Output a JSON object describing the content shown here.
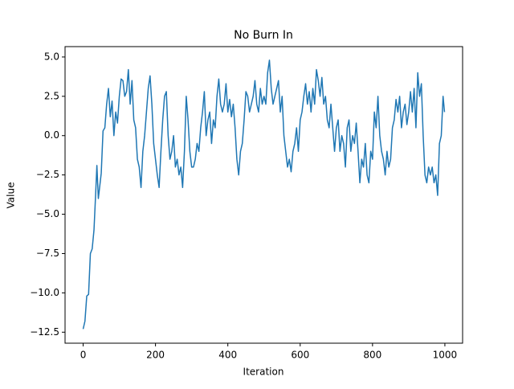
{
  "chart_data": {
    "type": "line",
    "title": "No Burn In",
    "x_label": "Iteration",
    "y_label": "Value",
    "color": "#1f77b4",
    "grid": false,
    "x": [
      0,
      5,
      10,
      15,
      20,
      25,
      30,
      35,
      38,
      42,
      50,
      55,
      60,
      65,
      70,
      75,
      80,
      85,
      90,
      95,
      100,
      105,
      110,
      115,
      120,
      125,
      130,
      135,
      140,
      145,
      150,
      155,
      160,
      165,
      170,
      175,
      180,
      185,
      190,
      195,
      200,
      205,
      210,
      215,
      220,
      225,
      230,
      235,
      240,
      245,
      250,
      255,
      260,
      265,
      270,
      275,
      280,
      285,
      290,
      295,
      300,
      305,
      310,
      315,
      320,
      325,
      330,
      335,
      340,
      345,
      350,
      355,
      360,
      365,
      370,
      375,
      380,
      385,
      390,
      395,
      400,
      405,
      410,
      415,
      420,
      425,
      430,
      435,
      440,
      445,
      450,
      455,
      460,
      465,
      470,
      475,
      480,
      485,
      490,
      495,
      500,
      505,
      510,
      515,
      520,
      525,
      530,
      535,
      540,
      545,
      550,
      555,
      560,
      565,
      570,
      575,
      580,
      585,
      590,
      595,
      600,
      605,
      610,
      615,
      620,
      625,
      630,
      635,
      640,
      645,
      650,
      655,
      660,
      665,
      670,
      675,
      680,
      685,
      690,
      695,
      700,
      705,
      710,
      715,
      720,
      725,
      730,
      735,
      740,
      745,
      750,
      755,
      760,
      765,
      770,
      775,
      780,
      785,
      790,
      795,
      800,
      805,
      810,
      815,
      820,
      825,
      830,
      835,
      840,
      845,
      850,
      855,
      860,
      865,
      870,
      875,
      880,
      885,
      890,
      895,
      900,
      905,
      910,
      915,
      920,
      925,
      930,
      935,
      940,
      945,
      950,
      955,
      960,
      965,
      970,
      975,
      980,
      985,
      990,
      995,
      999
    ],
    "values": [
      -12.3,
      -11.8,
      -10.2,
      -10.1,
      -7.5,
      -7.2,
      -6,
      -3.5,
      -1.9,
      -4,
      -2.4,
      0.3,
      0.5,
      2,
      3,
      1.2,
      2.2,
      0,
      1.5,
      0.8,
      2.5,
      3.6,
      3.5,
      2.5,
      2.8,
      4.2,
      2,
      3.5,
      1,
      0.5,
      -1.5,
      -2,
      -3.3,
      -1,
      0,
      1.5,
      3,
      3.8,
      2,
      -0.5,
      -1.5,
      -2.5,
      -3.3,
      -1,
      1,
      2.5,
      2.8,
      0,
      -1.5,
      -1,
      0,
      -2,
      -1.5,
      -2.5,
      -2,
      -3.3,
      -1,
      2.5,
      1,
      -1,
      -2,
      -2,
      -1.5,
      -0.5,
      -1,
      0.5,
      1.5,
      2.8,
      0,
      1,
      1.5,
      -0.5,
      1,
      0.5,
      2.5,
      3.6,
      2,
      1.5,
      2,
      3.3,
      1.5,
      2.3,
      1.2,
      2,
      0.5,
      -1.5,
      -2.5,
      -1,
      -0.5,
      1,
      2.8,
      2.5,
      1.5,
      2,
      2.5,
      3.5,
      2,
      1.5,
      3,
      2,
      2.5,
      2,
      4,
      4.8,
      3,
      2,
      2.5,
      3,
      3.5,
      1.5,
      2.5,
      0,
      -1,
      -2,
      -1.5,
      -2.3,
      -1,
      -0.5,
      0.5,
      -1,
      1,
      1.5,
      2.5,
      3.3,
      2,
      2.8,
      1.5,
      3,
      2,
      4.2,
      3.5,
      2.5,
      3.7,
      2,
      2.5,
      1,
      0.5,
      2,
      0.5,
      -1,
      0.5,
      1,
      -1,
      0,
      -0.5,
      -2,
      0.5,
      1,
      -1,
      0,
      -0.5,
      0.8,
      -1,
      -3,
      -1.5,
      -2,
      -0.5,
      -2.5,
      -3,
      -1,
      -1.5,
      1.5,
      0.5,
      2.5,
      0,
      -1,
      -1.5,
      -2.5,
      -1,
      -2,
      -1.5,
      0.5,
      1,
      2.3,
      1.5,
      2.5,
      0.5,
      1.5,
      2,
      0.7,
      1.5,
      2.8,
      1.5,
      3,
      0.5,
      4,
      2.5,
      3.3,
      0,
      -2.5,
      -3,
      -2,
      -2.5,
      -2,
      -3,
      -2.5,
      -3.8,
      -0.5,
      0,
      2.5,
      1.5
    ],
    "xlim": [
      -50,
      1049
    ],
    "ylim": [
      -13.2,
      5.66
    ],
    "xticks": [
      0,
      200,
      400,
      600,
      800,
      1000
    ],
    "yticks": [
      {
        "value": -12.5,
        "label": "−12.5"
      },
      {
        "value": -10,
        "label": "−10.0"
      },
      {
        "value": -7.5,
        "label": "−7.5"
      },
      {
        "value": -5,
        "label": "−5.0"
      },
      {
        "value": -2.5,
        "label": "−2.5"
      },
      {
        "value": 0,
        "label": "0.0"
      },
      {
        "value": 2.5,
        "label": "2.5"
      },
      {
        "value": 5,
        "label": "5.0"
      }
    ]
  }
}
